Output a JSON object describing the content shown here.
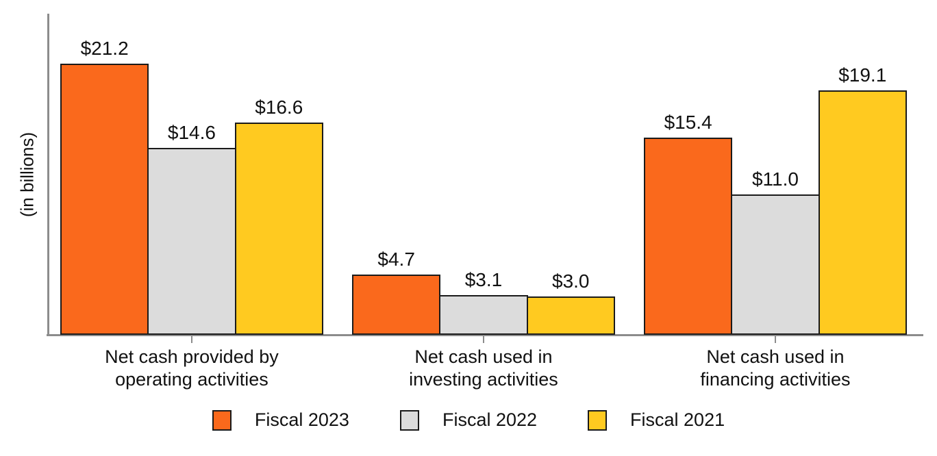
{
  "chart_data": {
    "type": "bar",
    "title": "",
    "ylabel": "(in billions)",
    "xlabel": "",
    "units": "billions of dollars",
    "grid": false,
    "y_axis_ticks_visible": false,
    "ylim": [
      0,
      25
    ],
    "legend_position": "bottom",
    "categories": [
      "Net cash provided by\noperating activities",
      "Net cash used in\ninvesting activities",
      "Net cash used in\nfinancing activities"
    ],
    "series": [
      {
        "name": "Fiscal 2023",
        "color": "#FA691C",
        "values": [
          21.2,
          4.7,
          15.4
        ]
      },
      {
        "name": "Fiscal 2022",
        "color": "#DCDCDC",
        "values": [
          14.6,
          3.1,
          11.0
        ]
      },
      {
        "name": "Fiscal 2021",
        "color": "#FFCA20",
        "values": [
          16.6,
          3.0,
          19.1
        ]
      }
    ],
    "value_labels": [
      [
        "$21.2",
        "$4.7",
        "$15.4"
      ],
      [
        "$14.6",
        "$3.1",
        "$11.0"
      ],
      [
        "$16.6",
        "$3.0",
        "$19.1"
      ]
    ],
    "colors": {
      "axis": "#8C8C8C",
      "bar_border": "#1A1A1A",
      "text": "#111111",
      "background": "#FFFFFF"
    }
  }
}
